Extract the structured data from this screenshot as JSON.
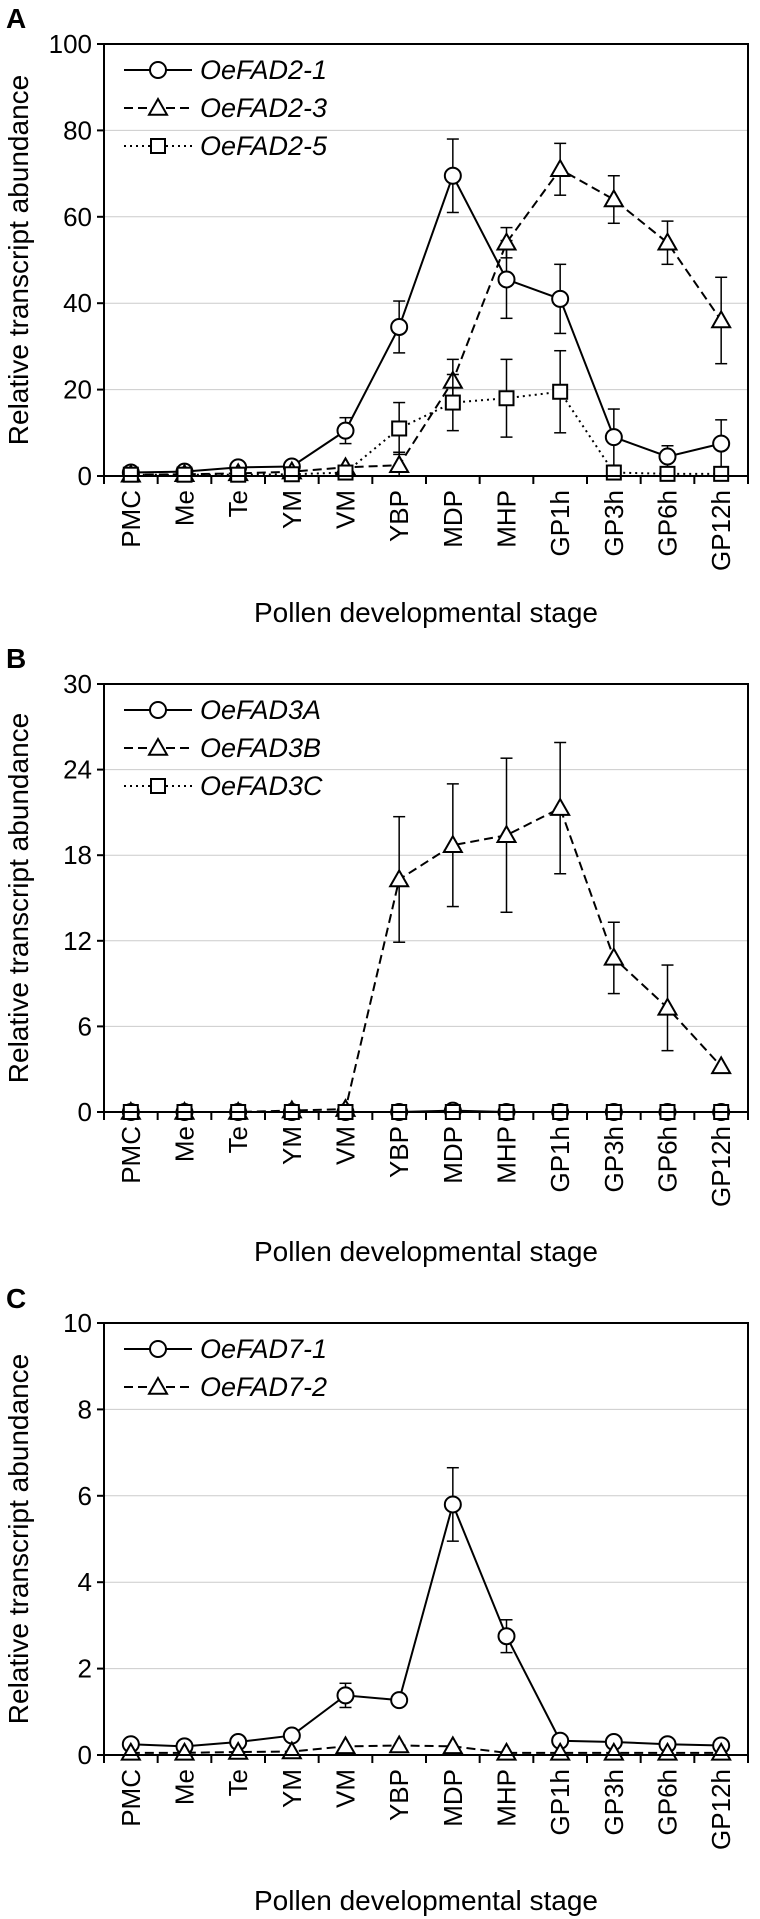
{
  "figure": {
    "categories": [
      "PMC",
      "Me",
      "Te",
      "YM",
      "VM",
      "YBP",
      "MDP",
      "MHP",
      "GP1h",
      "GP3h",
      "GP6h",
      "GP12h"
    ]
  },
  "chart_data": [
    {
      "type": "line",
      "panel_label": "A",
      "title": "",
      "xlabel": "Pollen developmental stage",
      "ylabel": "Relative transcript abundance",
      "ylim": [
        0,
        100
      ],
      "yticks": [
        0,
        20,
        40,
        60,
        80,
        100
      ],
      "grid": true,
      "legend_position": "top-left",
      "categories": [
        "PMC",
        "Me",
        "Te",
        "YM",
        "VM",
        "YBP",
        "MDP",
        "MHP",
        "GP1h",
        "GP3h",
        "GP6h",
        "GP12h"
      ],
      "series": [
        {
          "name": "OeFAD2-1",
          "marker": "circle",
          "line": "solid",
          "values": [
            0.8,
            1.0,
            2.0,
            2.2,
            10.5,
            34.5,
            69.5,
            45.5,
            41.0,
            9.0,
            4.5,
            7.5
          ],
          "errors": [
            0.3,
            0.3,
            0.5,
            0.5,
            3.0,
            6.0,
            8.5,
            9.0,
            8.0,
            6.5,
            2.5,
            5.5
          ]
        },
        {
          "name": "OeFAD2-3",
          "marker": "triangle",
          "line": "dashed",
          "values": [
            0.3,
            0.4,
            0.6,
            1.0,
            2.0,
            2.5,
            22.0,
            54.0,
            71.0,
            64.0,
            54.0,
            36.0
          ],
          "errors": [
            0.2,
            0.2,
            0.2,
            0.4,
            0.8,
            3.0,
            5.0,
            3.5,
            6.0,
            5.5,
            5.0,
            10.0
          ]
        },
        {
          "name": "OeFAD2-5",
          "marker": "square",
          "line": "dotted",
          "values": [
            0.3,
            0.3,
            0.3,
            0.4,
            0.8,
            11.0,
            17.0,
            18.0,
            19.5,
            0.8,
            0.5,
            0.5
          ],
          "errors": [
            0.2,
            0.2,
            0.2,
            0.2,
            0.5,
            6.0,
            6.5,
            9.0,
            9.5,
            0.5,
            0.3,
            0.3
          ]
        }
      ]
    },
    {
      "type": "line",
      "panel_label": "B",
      "title": "",
      "xlabel": "Pollen developmental stage",
      "ylabel": "Relative transcript abundance",
      "ylim": [
        0,
        30
      ],
      "yticks": [
        0,
        6,
        12,
        18,
        24,
        30
      ],
      "grid": true,
      "legend_position": "top-left",
      "categories": [
        "PMC",
        "Me",
        "Te",
        "YM",
        "VM",
        "YBP",
        "MDP",
        "MHP",
        "GP1h",
        "GP3h",
        "GP6h",
        "GP12h"
      ],
      "series": [
        {
          "name": "OeFAD3A",
          "marker": "circle",
          "line": "solid",
          "values": [
            0,
            0,
            0,
            0,
            0,
            0,
            0.1,
            0,
            0,
            0,
            0,
            0
          ],
          "errors": [
            0,
            0,
            0,
            0,
            0,
            0,
            0,
            0,
            0,
            0,
            0,
            0
          ]
        },
        {
          "name": "OeFAD3B",
          "marker": "triangle",
          "line": "dashed",
          "values": [
            0,
            0,
            0,
            0.1,
            0.2,
            16.3,
            18.7,
            19.4,
            21.3,
            10.8,
            7.3,
            3.2
          ],
          "errors": [
            0,
            0,
            0,
            0,
            0,
            4.4,
            4.3,
            5.4,
            4.6,
            2.5,
            3.0,
            0.2
          ]
        },
        {
          "name": "OeFAD3C",
          "marker": "square",
          "line": "dotted",
          "values": [
            0,
            0,
            0,
            0,
            0,
            0,
            0,
            0,
            0,
            0,
            0,
            0
          ],
          "errors": [
            0,
            0,
            0,
            0,
            0,
            0,
            0,
            0,
            0,
            0,
            0,
            0
          ]
        }
      ]
    },
    {
      "type": "line",
      "panel_label": "C",
      "title": "",
      "xlabel": "Pollen developmental stage",
      "ylabel": "Relative transcript abundance",
      "ylim": [
        0,
        10
      ],
      "yticks": [
        0,
        2,
        4,
        6,
        8,
        10
      ],
      "grid": true,
      "legend_position": "top-left",
      "categories": [
        "PMC",
        "Me",
        "Te",
        "YM",
        "VM",
        "YBP",
        "MDP",
        "MHP",
        "GP1h",
        "GP3h",
        "GP6h",
        "GP12h"
      ],
      "series": [
        {
          "name": "OeFAD7-1",
          "marker": "circle",
          "line": "solid",
          "values": [
            0.25,
            0.2,
            0.3,
            0.45,
            1.38,
            1.27,
            5.8,
            2.75,
            0.33,
            0.3,
            0.25,
            0.22
          ],
          "errors": [
            0.03,
            0.03,
            0.04,
            0.05,
            0.28,
            0.05,
            0.85,
            0.38,
            0.05,
            0.04,
            0.03,
            0.03
          ]
        },
        {
          "name": "OeFAD7-2",
          "marker": "triangle",
          "line": "dashed",
          "values": [
            0.05,
            0.05,
            0.07,
            0.08,
            0.2,
            0.22,
            0.2,
            0.05,
            0.05,
            0.05,
            0.05,
            0.05
          ],
          "errors": [
            0.02,
            0.02,
            0.02,
            0.02,
            0.05,
            0.05,
            0.05,
            0.02,
            0.02,
            0.02,
            0.02,
            0.02
          ]
        }
      ]
    }
  ]
}
